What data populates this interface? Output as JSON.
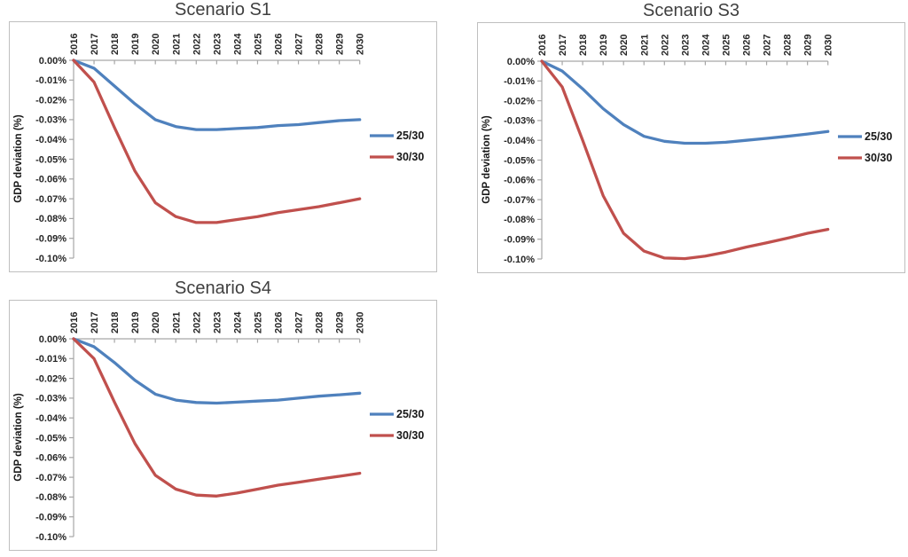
{
  "page": {
    "background": "#ffffff"
  },
  "colors": {
    "series_blue": "#4F81BD",
    "series_red": "#C0504D",
    "axis_line": "#A6A6A6",
    "chart_border": "#BFBFBF",
    "title_text": "#3F3F3F",
    "tick_text": "#262626"
  },
  "chart_data": [
    {
      "type": "line",
      "title": "Scenario S1",
      "xlabel": "",
      "ylabel": "GDP deviation (%)",
      "ylim": [
        -0.1,
        0.0
      ],
      "grid": false,
      "legend_position": "right",
      "x": [
        "2016",
        "2017",
        "2018",
        "2019",
        "2020",
        "2021",
        "2022",
        "2023",
        "2024",
        "2025",
        "2026",
        "2027",
        "2028",
        "2029",
        "2030"
      ],
      "y_tick_labels": [
        "0.00%",
        "-0.01%",
        "-0.02%",
        "-0.03%",
        "-0.04%",
        "-0.05%",
        "-0.06%",
        "-0.07%",
        "-0.08%",
        "-0.09%",
        "-0.10%"
      ],
      "series": [
        {
          "name": "25/30",
          "color": "#4F81BD",
          "values": [
            0,
            -0.004,
            -0.013,
            -0.022,
            -0.03,
            -0.0335,
            -0.035,
            -0.035,
            -0.0345,
            -0.034,
            -0.033,
            -0.0325,
            -0.0315,
            -0.0305,
            -0.03
          ]
        },
        {
          "name": "30/30",
          "color": "#C0504D",
          "values": [
            0,
            -0.011,
            -0.034,
            -0.056,
            -0.072,
            -0.079,
            -0.082,
            -0.082,
            -0.0805,
            -0.079,
            -0.077,
            -0.0755,
            -0.074,
            -0.072,
            -0.07
          ]
        }
      ]
    },
    {
      "type": "line",
      "title": "Scenario S3",
      "xlabel": "",
      "ylabel": "GDP deviation (%)",
      "ylim": [
        -0.1,
        0.0
      ],
      "grid": false,
      "legend_position": "right",
      "x": [
        "2016",
        "2017",
        "2018",
        "2019",
        "2020",
        "2021",
        "2022",
        "2023",
        "2024",
        "2025",
        "2026",
        "2027",
        "2028",
        "2029",
        "2030"
      ],
      "y_tick_labels": [
        "0.00%",
        "-0.01%",
        "-0.02%",
        "-0.03%",
        "-0.04%",
        "-0.05%",
        "-0.06%",
        "-0.07%",
        "-0.08%",
        "-0.09%",
        "-0.10%"
      ],
      "series": [
        {
          "name": "25/30",
          "color": "#4F81BD",
          "values": [
            0,
            -0.005,
            -0.014,
            -0.024,
            -0.032,
            -0.038,
            -0.0405,
            -0.0415,
            -0.0415,
            -0.041,
            -0.04,
            -0.039,
            -0.038,
            -0.0368,
            -0.0355
          ]
        },
        {
          "name": "30/30",
          "color": "#C0504D",
          "values": [
            0,
            -0.013,
            -0.04,
            -0.068,
            -0.087,
            -0.096,
            -0.0995,
            -0.0998,
            -0.0985,
            -0.0965,
            -0.094,
            -0.0918,
            -0.0895,
            -0.087,
            -0.085
          ]
        }
      ]
    },
    {
      "type": "line",
      "title": "Scenario S4",
      "xlabel": "",
      "ylabel": "GDP deviation (%)",
      "ylim": [
        -0.1,
        0.0
      ],
      "grid": false,
      "legend_position": "right",
      "x": [
        "2016",
        "2017",
        "2018",
        "2019",
        "2020",
        "2021",
        "2022",
        "2023",
        "2024",
        "2025",
        "2026",
        "2027",
        "2028",
        "2029",
        "2030"
      ],
      "y_tick_labels": [
        "0.00%",
        "-0.01%",
        "-0.02%",
        "-0.03%",
        "-0.04%",
        "-0.05%",
        "-0.06%",
        "-0.07%",
        "-0.08%",
        "-0.09%",
        "-0.10%"
      ],
      "series": [
        {
          "name": "25/30",
          "color": "#4F81BD",
          "values": [
            0,
            -0.004,
            -0.012,
            -0.021,
            -0.028,
            -0.031,
            -0.0322,
            -0.0325,
            -0.032,
            -0.0315,
            -0.031,
            -0.03,
            -0.029,
            -0.0283,
            -0.0275
          ]
        },
        {
          "name": "30/30",
          "color": "#C0504D",
          "values": [
            0,
            -0.01,
            -0.032,
            -0.053,
            -0.069,
            -0.076,
            -0.079,
            -0.0795,
            -0.078,
            -0.076,
            -0.074,
            -0.0725,
            -0.071,
            -0.0695,
            -0.068
          ]
        }
      ]
    }
  ]
}
